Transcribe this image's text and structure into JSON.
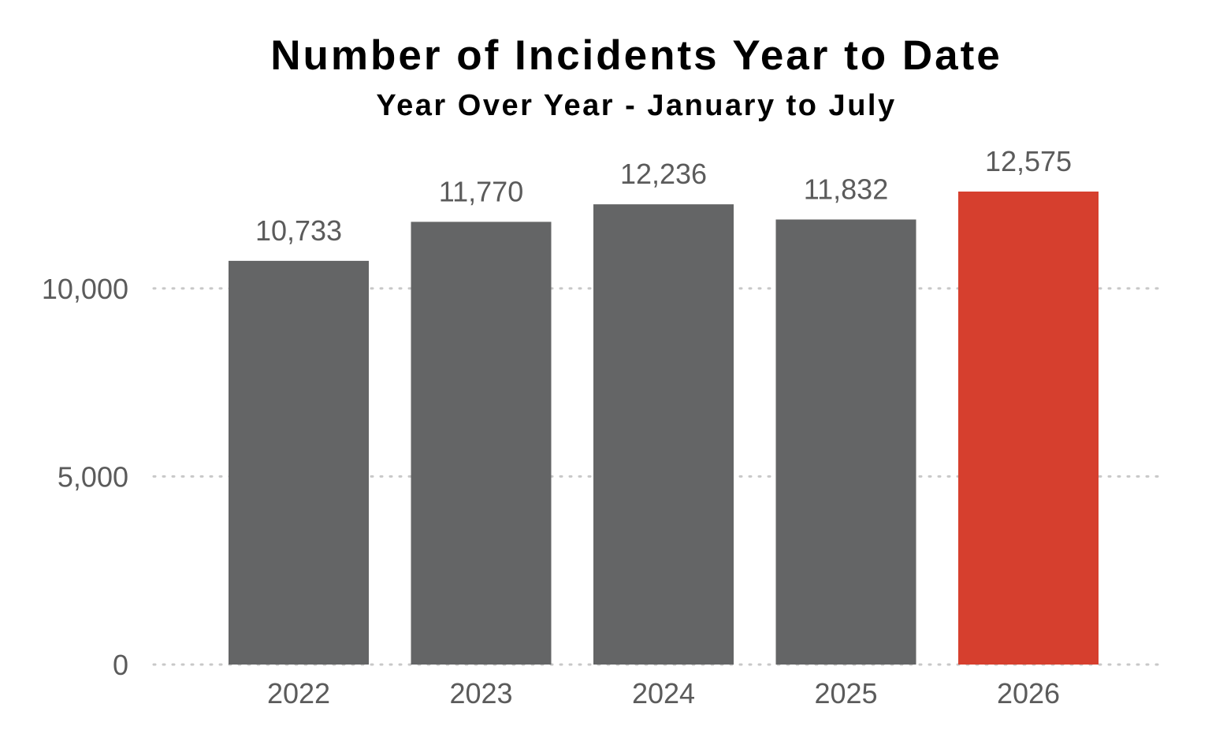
{
  "chart_data": {
    "type": "bar",
    "title": "Number of Incidents Year to Date",
    "subtitle": "Year Over Year - January to July",
    "categories": [
      "2022",
      "2023",
      "2024",
      "2025",
      "2026"
    ],
    "values": [
      10733,
      11770,
      12236,
      11832,
      12575
    ],
    "value_labels": [
      "10,733",
      "11,770",
      "12,236",
      "11,832",
      "12,575"
    ],
    "xlabel": "",
    "ylabel": "",
    "ylim": [
      0,
      12575
    ],
    "yticks": [
      0,
      5000,
      10000
    ],
    "ytick_labels": [
      "0",
      "5,000",
      "10,000"
    ],
    "grid": true,
    "grid_style": "dotted",
    "legend": "none",
    "colors": {
      "default_bar": "#646566",
      "highlight_bar": "#d63f2e",
      "label_text": "#5b5b5b",
      "grid": "#c8c8c8"
    },
    "highlight_category": "2026"
  }
}
